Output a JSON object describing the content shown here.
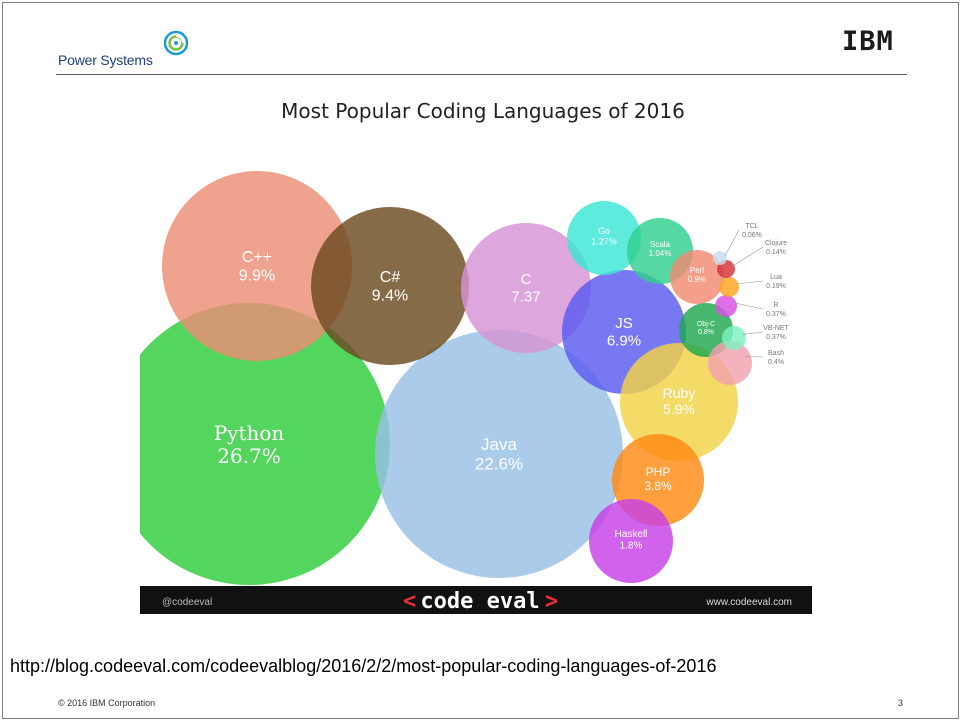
{
  "header": {
    "brand": "Power Systems",
    "logo_text": "IBM"
  },
  "chart_data": {
    "type": "bubble",
    "title": "Most Popular Coding Languages of 2016",
    "series": [
      {
        "name": "Python",
        "label": "26.7%",
        "value": 26.7,
        "color": "#2ecc3a"
      },
      {
        "name": "Java",
        "label": "22.6%",
        "value": 22.6,
        "color": "#97bfe5"
      },
      {
        "name": "C++",
        "label": "9.9%",
        "value": 9.9,
        "color": "#ec8e74"
      },
      {
        "name": "C#",
        "label": "9.4%",
        "value": 9.4,
        "color": "#6b4a20"
      },
      {
        "name": "C",
        "label": "7.37",
        "value": 7.37,
        "color": "#d594d6"
      },
      {
        "name": "JS",
        "label": "6.9%",
        "value": 6.9,
        "color": "#5a5af0"
      },
      {
        "name": "Ruby",
        "label": "5.9%",
        "value": 5.9,
        "color": "#f2d244"
      },
      {
        "name": "PHP",
        "label": "3.8%",
        "value": 3.8,
        "color": "#ff8a12"
      },
      {
        "name": "Haskell",
        "label": "1.8%",
        "value": 1.8,
        "color": "#c63fe6"
      },
      {
        "name": "Go",
        "label": "1.27%",
        "value": 1.27,
        "color": "#3be6d6"
      },
      {
        "name": "Scala",
        "label": "1.04%",
        "value": 1.04,
        "color": "#2fd08e"
      },
      {
        "name": "Perl",
        "label": "0.9%",
        "value": 0.9,
        "color": "#f08a72"
      },
      {
        "name": "Obj-C",
        "label": "0.8%",
        "value": 0.8,
        "color": "#1ea64e"
      },
      {
        "name": "Bash",
        "label": "0.4%",
        "value": 0.4,
        "color": "#f2a1ad"
      },
      {
        "name": "VB-NET",
        "label": "0.37%",
        "value": 0.37,
        "color": "#7ff0c2"
      },
      {
        "name": "R",
        "label": "0.37%",
        "value": 0.37,
        "color": "#d84fe0"
      },
      {
        "name": "Lua",
        "label": "0.19%",
        "value": 0.19,
        "color": "#ffa31f"
      },
      {
        "name": "Clojure",
        "label": "0.14%",
        "value": 0.14,
        "color": "#d6313a"
      },
      {
        "name": "TCL",
        "label": "0.06%",
        "value": 0.06,
        "color": "#c7ddf2"
      }
    ]
  },
  "footer_bar": {
    "handle": "@codeeval",
    "logo_left": "<",
    "logo_text": "code eval",
    "logo_right": ">",
    "site": "www.codeeval.com"
  },
  "source_url": "http://blog.codeeval.com/codeevalblog/2016/2/2/most-popular-coding-languages-of-2016",
  "footer": {
    "copyright": "© 2016 IBM Corporation",
    "page_number": "3"
  }
}
